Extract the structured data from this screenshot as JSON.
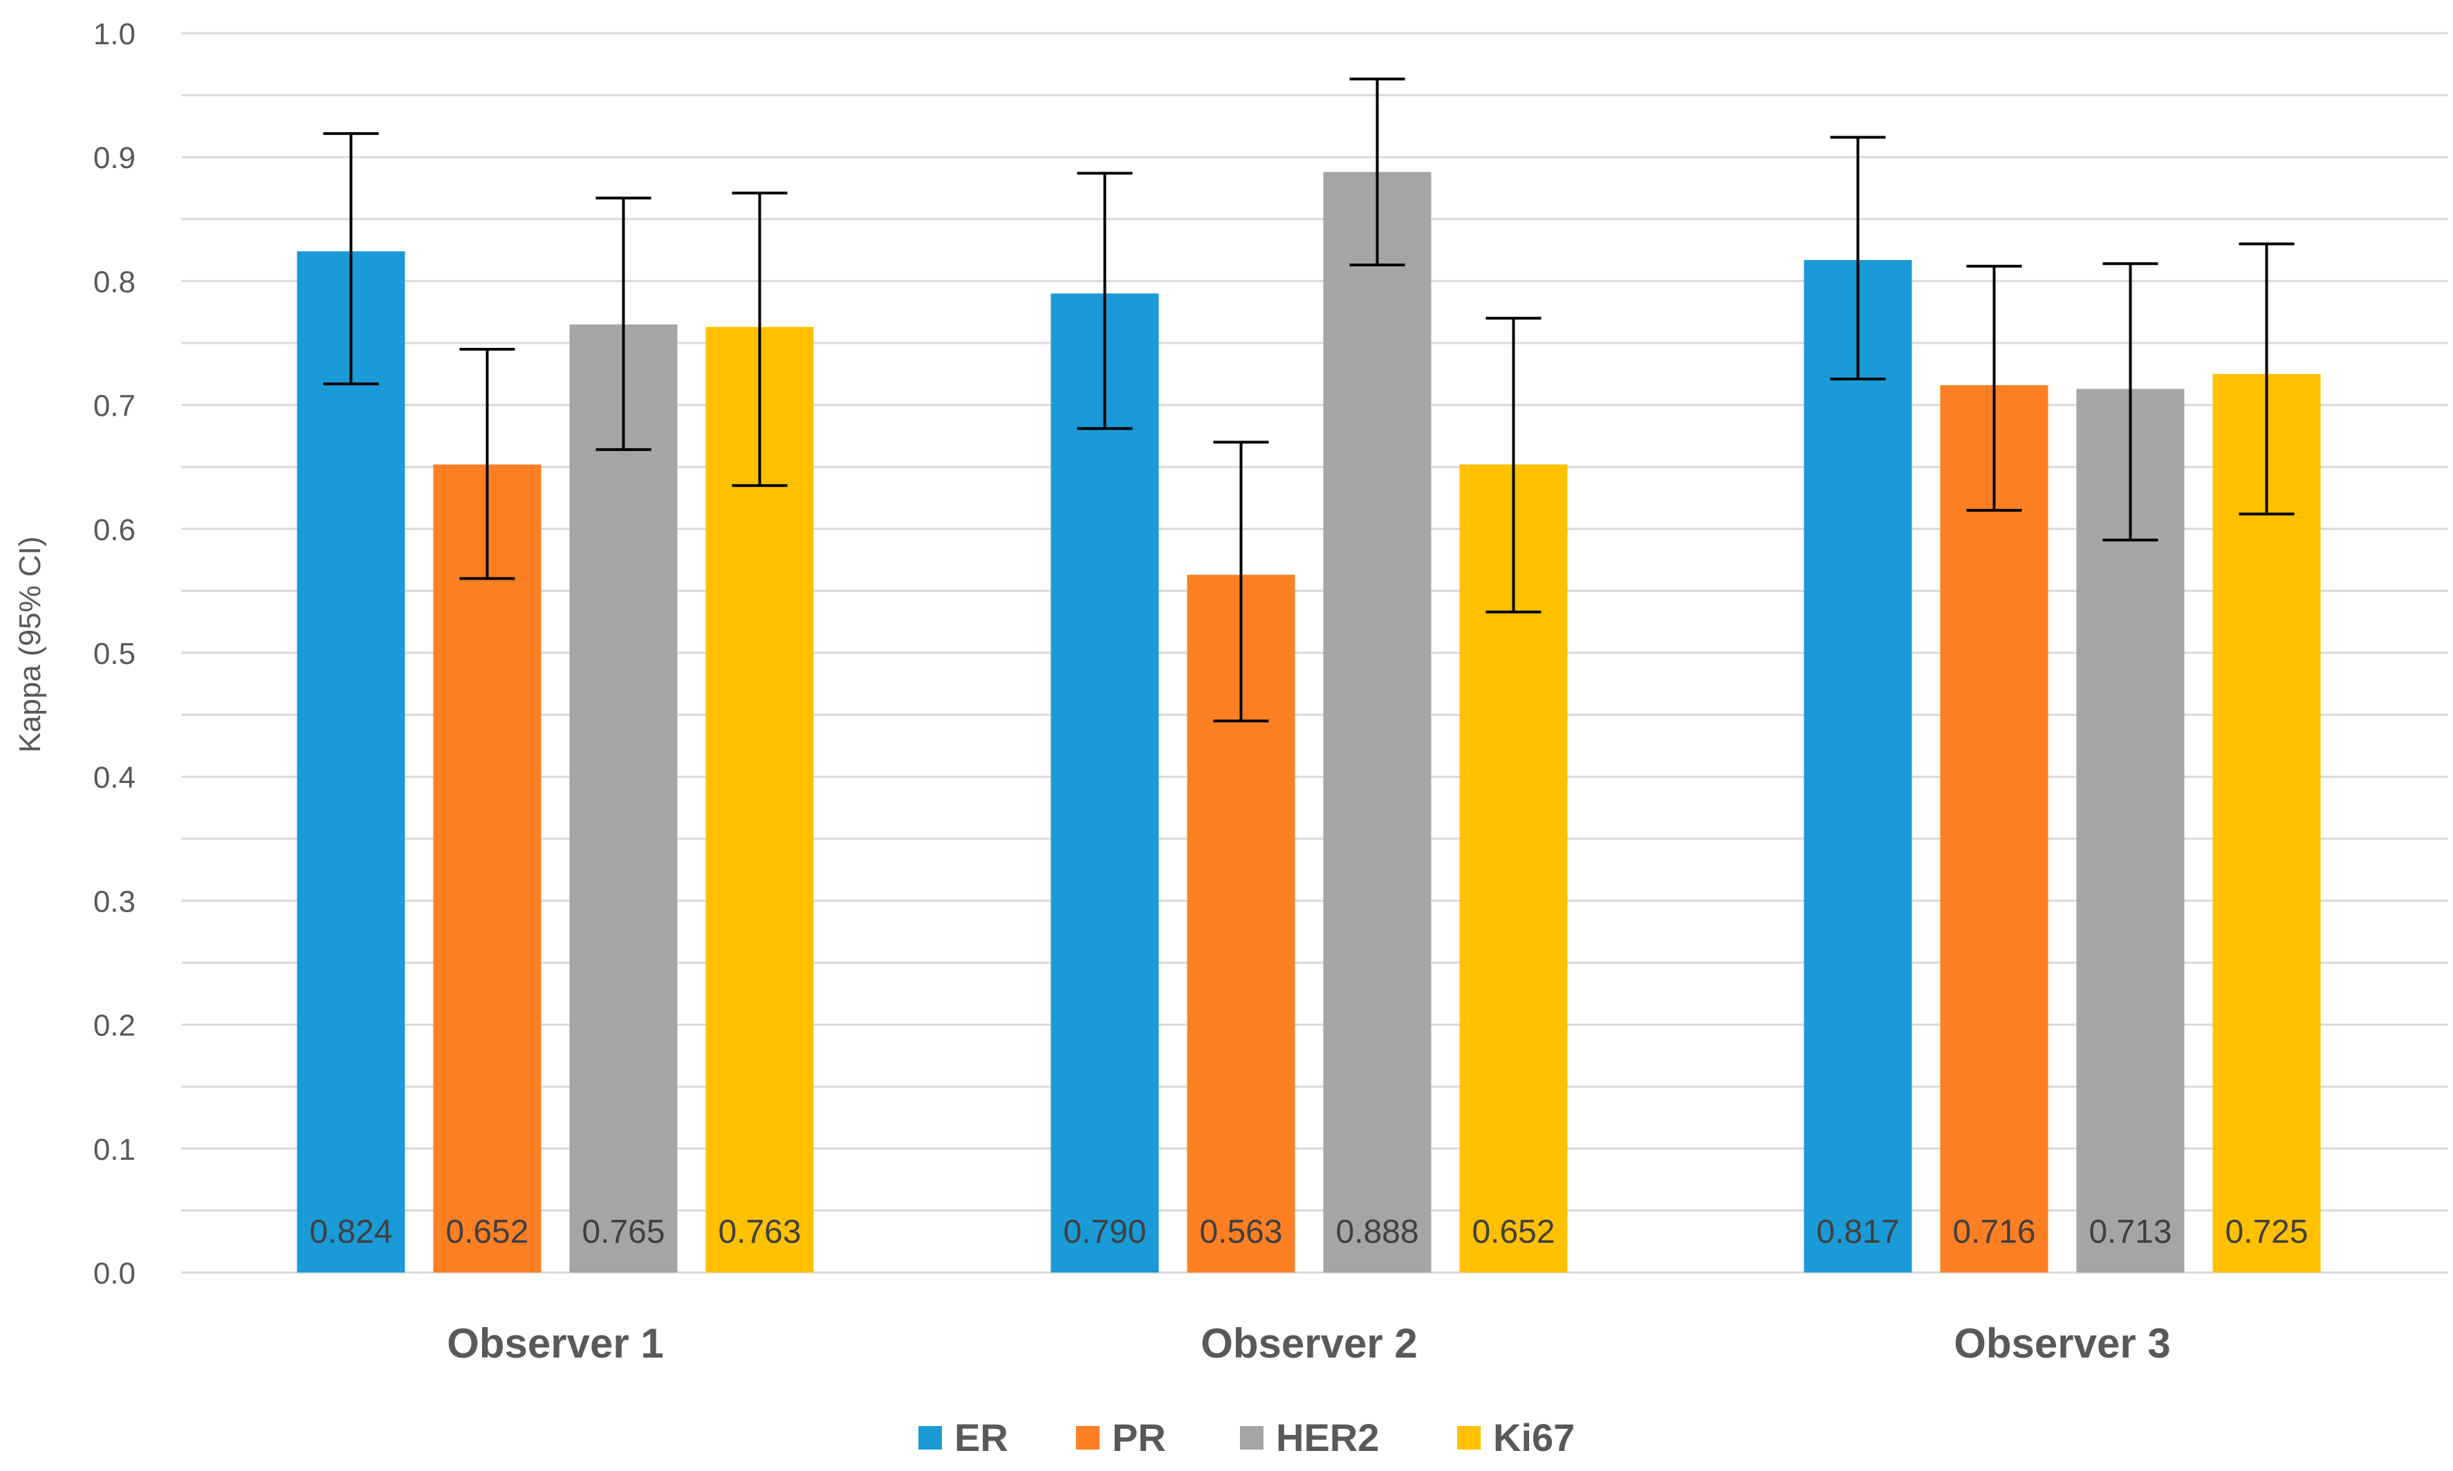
{
  "chart_data": {
    "type": "bar",
    "title": "",
    "xlabel": "",
    "ylabel": "Kappa (95% CI)",
    "ylim": [
      0.0,
      1.0
    ],
    "yticks": [
      "0.0",
      "0.1",
      "0.2",
      "0.3",
      "0.4",
      "0.5",
      "0.6",
      "0.7",
      "0.8",
      "0.9",
      "1.0"
    ],
    "grid": true,
    "legend_position": "bottom",
    "categories": [
      "Observer 1",
      "Observer 2",
      "Observer 3"
    ],
    "series": [
      {
        "name": "ER",
        "color": "#1a9ad6",
        "values": [
          0.824,
          0.79,
          0.817
        ],
        "labels": [
          "0.824",
          "0.790",
          "0.817"
        ],
        "ci_low": [
          0.717,
          0.681,
          0.721
        ],
        "ci_high": [
          0.919,
          0.887,
          0.916
        ]
      },
      {
        "name": "PR",
        "color": "#fd7f24",
        "values": [
          0.652,
          0.563,
          0.716
        ],
        "labels": [
          "0.652",
          "0.563",
          "0.716"
        ],
        "ci_low": [
          0.56,
          0.445,
          0.615
        ],
        "ci_high": [
          0.745,
          0.67,
          0.812
        ]
      },
      {
        "name": "HER2",
        "color": "#a5a5a5",
        "values": [
          0.765,
          0.888,
          0.713
        ],
        "labels": [
          "0.765",
          "0.888",
          "0.713"
        ],
        "ci_low": [
          0.664,
          0.813,
          0.591
        ],
        "ci_high": [
          0.867,
          0.963,
          0.814
        ]
      },
      {
        "name": "Ki67",
        "color": "#ffc000",
        "values": [
          0.763,
          0.652,
          0.725
        ],
        "labels": [
          "0.763",
          "0.652",
          "0.725"
        ],
        "ci_low": [
          0.635,
          0.533,
          0.612
        ],
        "ci_high": [
          0.871,
          0.77,
          0.83
        ]
      }
    ]
  }
}
